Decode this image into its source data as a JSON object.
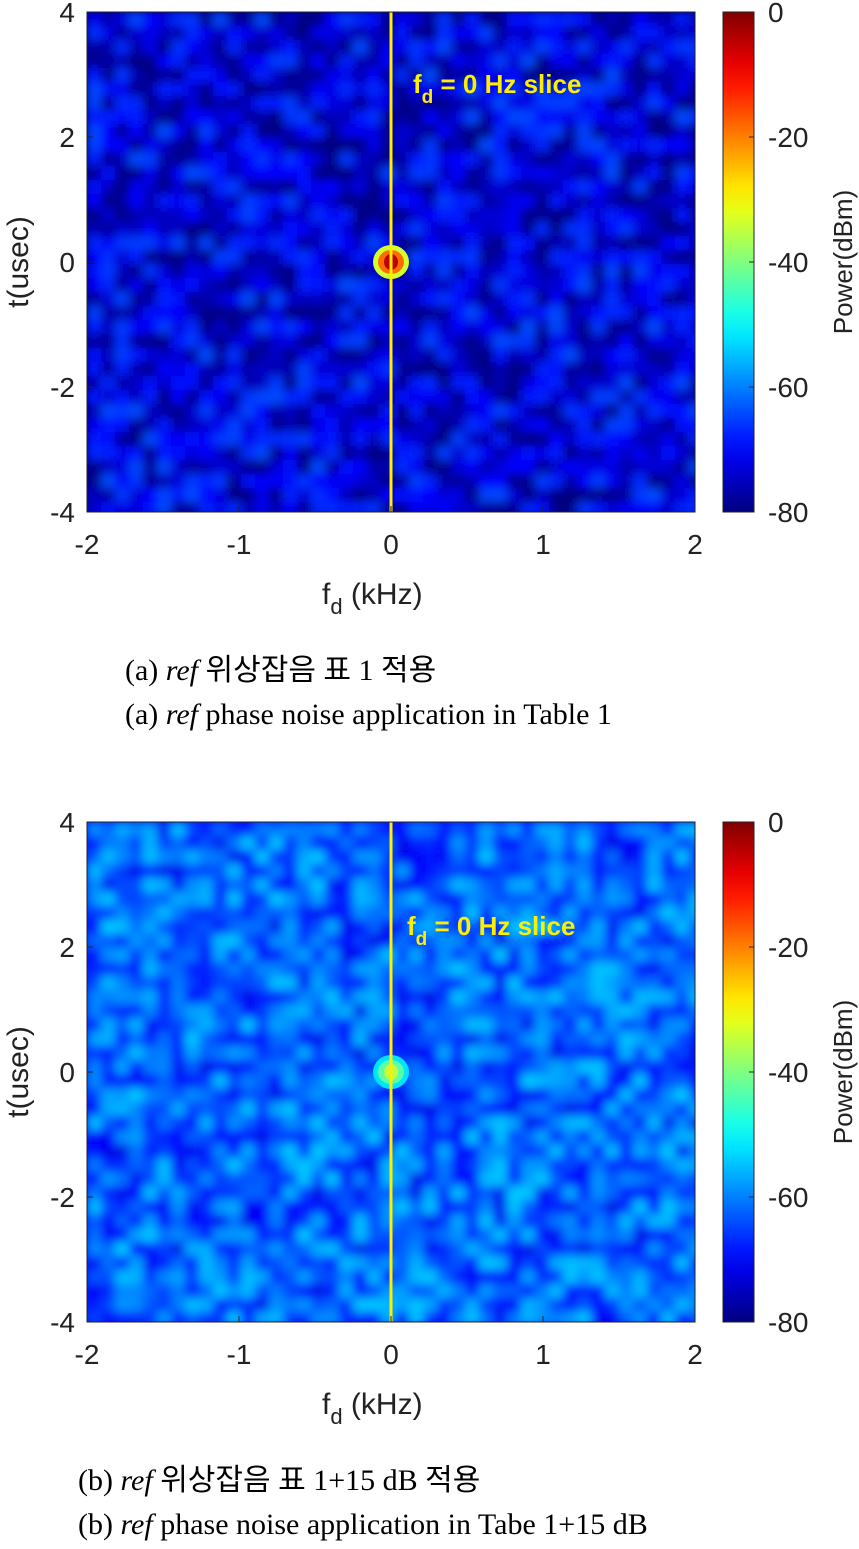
{
  "panels": [
    {
      "id": "a",
      "caption_ko": {
        "prefix": "(a)",
        "ref": "ref",
        "rest": "위상잡음  표  1  적용"
      },
      "caption_en": {
        "prefix": "(a)",
        "ref": "ref",
        "rest": "phase noise application in Table 1"
      }
    },
    {
      "id": "b",
      "caption_ko": {
        "prefix": "(b)",
        "ref": "ref",
        "rest": "위상잡음  표  1+15  dB  적용"
      },
      "caption_en": {
        "prefix": "(b)",
        "ref": "ref",
        "rest": "phase noise application in Tabe 1+15  dB"
      }
    }
  ],
  "chart_data": [
    {
      "type": "heatmap",
      "xlabel": "f_d (kHz)",
      "ylabel": "t(usec)",
      "xlim": [
        -2,
        2
      ],
      "ylim": [
        -4,
        4
      ],
      "xticks": [
        "-2",
        "-1",
        "0",
        "1",
        "2"
      ],
      "yticks": [
        "4",
        "2",
        "0",
        "-2",
        "-4"
      ],
      "colorbar": {
        "label": "Power(dBm)",
        "range": [
          -80,
          0
        ],
        "ticks": [
          "0",
          "-20",
          "-40",
          "-60",
          "-80"
        ]
      },
      "noise_floor_dbm": -70,
      "peak": {
        "fd_khz": 0,
        "t_usec": 0,
        "power_dbm": -5
      },
      "slice_line": {
        "fd_khz": 0,
        "color": "#ffee00"
      },
      "annotation": {
        "main": "f",
        "sub": "d",
        "text": " = 0 Hz slice",
        "color": "#ffee00"
      }
    },
    {
      "type": "heatmap",
      "xlabel": "f_d (kHz)",
      "ylabel": "t(usec)",
      "xlim": [
        -2,
        2
      ],
      "ylim": [
        -4,
        4
      ],
      "xticks": [
        "-2",
        "-1",
        "0",
        "1",
        "2"
      ],
      "yticks": [
        "4",
        "2",
        "0",
        "-2",
        "-4"
      ],
      "colorbar": {
        "label": "Power(dBm)",
        "range": [
          -80,
          0
        ],
        "ticks": [
          "0",
          "-20",
          "-40",
          "-60",
          "-80"
        ]
      },
      "noise_floor_dbm": -60,
      "peak": {
        "fd_khz": 0,
        "t_usec": 0,
        "power_dbm": -35
      },
      "slice_line": {
        "fd_khz": 0,
        "color": "#ffee00"
      },
      "annotation": {
        "main": "f",
        "sub": "d",
        "text": " = 0 Hz slice",
        "color": "#ffee00"
      }
    }
  ],
  "axis_label_parts": {
    "x_main": "f",
    "x_sub": "d",
    "x_rest": " (kHz)",
    "y": "t(usec)",
    "cbar": "Power(dBm)"
  }
}
